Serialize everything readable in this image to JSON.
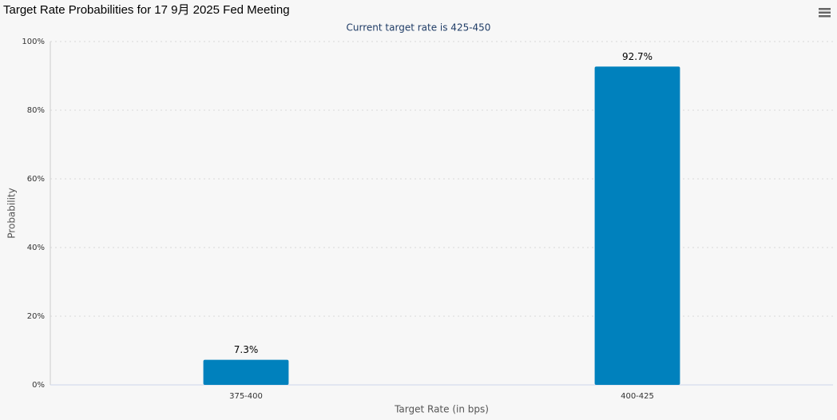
{
  "chart_data": {
    "type": "bar",
    "title": "Target Rate Probabilities for 17 9月 2025 Fed Meeting",
    "subtitle": "Current target rate is 425-450",
    "x_label": "Target Rate (in bps)",
    "y_label": "Probability",
    "categories": [
      "375-400",
      "400-425"
    ],
    "values": [
      7.3,
      92.7
    ],
    "value_labels": [
      "7.3%",
      "92.7%"
    ],
    "color": "#0081bd",
    "ylim": [
      0,
      100
    ],
    "yticks": [
      {
        "value": 0,
        "label": "0%"
      },
      {
        "value": 20,
        "label": "20%"
      },
      {
        "value": 40,
        "label": "40%"
      },
      {
        "value": 60,
        "label": "60%"
      },
      {
        "value": 80,
        "label": "80%"
      },
      {
        "value": 100,
        "label": "100%"
      }
    ],
    "grid": true
  }
}
